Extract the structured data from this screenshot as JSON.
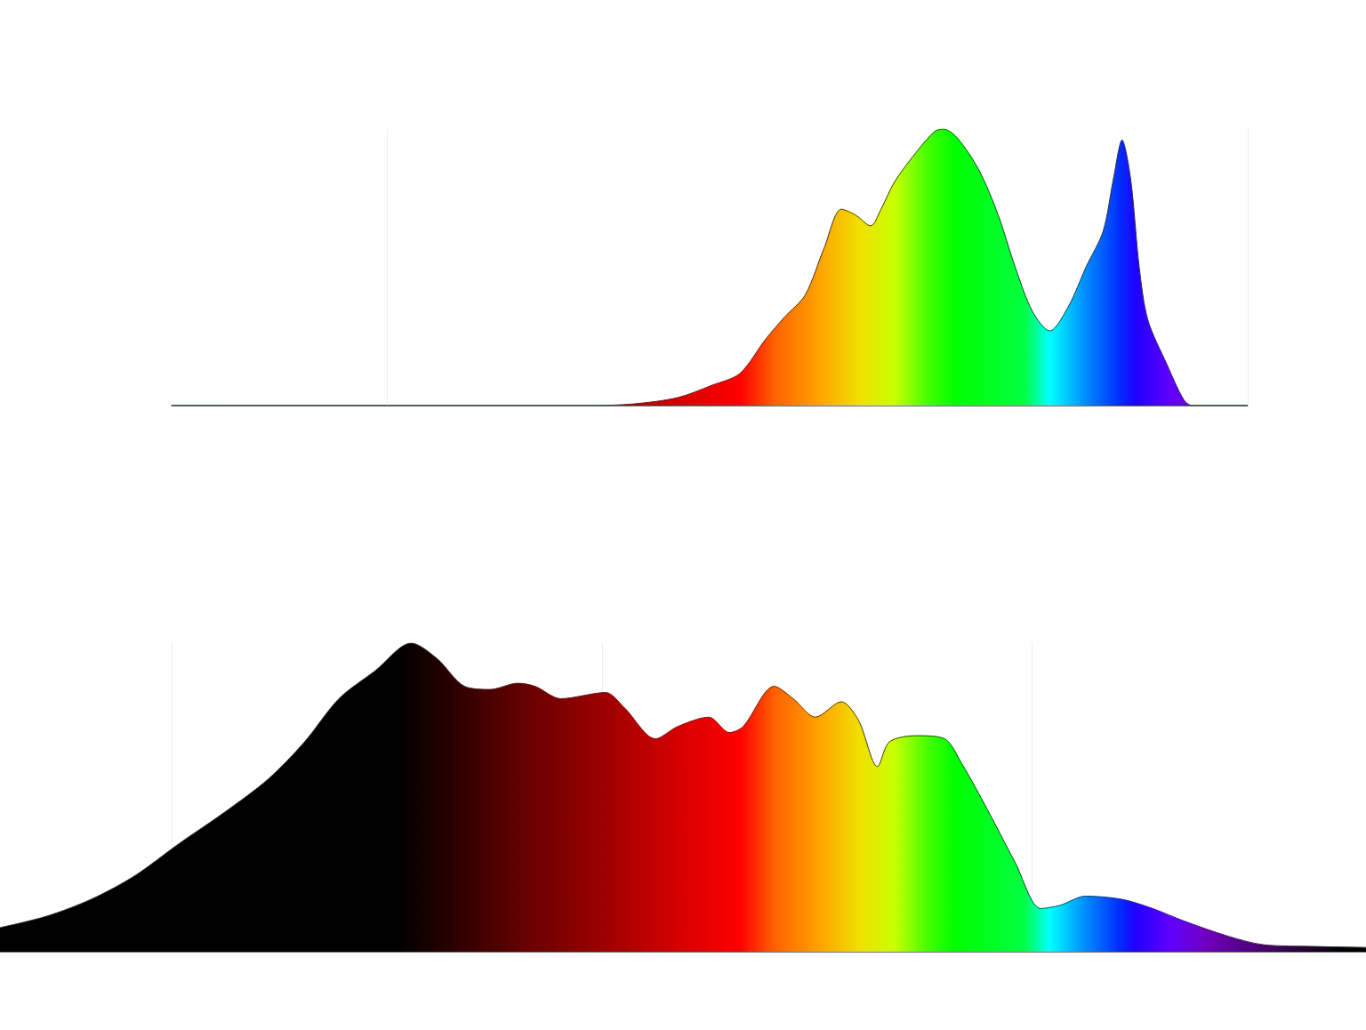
{
  "chart_data": [
    {
      "type": "area",
      "x": [
        1000,
        758,
        732,
        706,
        686,
        670,
        655,
        644,
        632,
        621,
        611,
        603,
        594,
        588,
        580,
        567,
        557,
        552,
        544,
        531,
        520,
        510,
        500,
        490,
        479,
        469,
        459,
        453,
        448,
        443,
        438,
        433,
        422,
        412,
        407,
        375
      ],
      "values": [
        0,
        0,
        0.6,
        2.9,
        7.4,
        11.6,
        24,
        32,
        40,
        57,
        71,
        69,
        65,
        71,
        81,
        92,
        99,
        100,
        97,
        85,
        69,
        50,
        34,
        27,
        36,
        50,
        63,
        82,
        96,
        82,
        50,
        31,
        15,
        2,
        0,
        0
      ],
      "xlim": [
        1000,
        375
      ],
      "xticks": [
        875,
        375
      ],
      "ylim": [
        0,
        100
      ],
      "yticks": [
        0,
        100
      ],
      "grid": "x",
      "tick_labels": false
    },
    {
      "type": "area",
      "x": [
        1100,
        1073,
        1047,
        1022,
        996,
        970,
        944,
        923,
        903,
        882,
        861,
        846,
        830,
        815,
        799,
        789,
        774,
        748,
        737,
        719,
        706,
        688,
        676,
        668,
        650,
        639,
        626,
        611,
        601,
        590,
        583,
        567,
        551,
        541,
        526,
        510,
        495,
        484,
        469,
        448,
        430,
        412,
        386,
        366,
        335,
        306
      ],
      "values": [
        7.8,
        11.5,
        17,
        24.5,
        35,
        45,
        56,
        68,
        82,
        91,
        100,
        95,
        86,
        85,
        87,
        86,
        82,
        84,
        79,
        69,
        73,
        76,
        71,
        73,
        86,
        82,
        76,
        81,
        75,
        60,
        68,
        70,
        69,
        61,
        46,
        29,
        14,
        15,
        18,
        17,
        14,
        10,
        5,
        2.3,
        1.7,
        1.4
      ],
      "xlim": [
        1100,
        306
      ],
      "xticks": [
        1000,
        750,
        500
      ],
      "ylim": [
        0,
        100
      ],
      "yticks": [
        0,
        100
      ],
      "grid": "x",
      "tick_labels": false
    }
  ]
}
